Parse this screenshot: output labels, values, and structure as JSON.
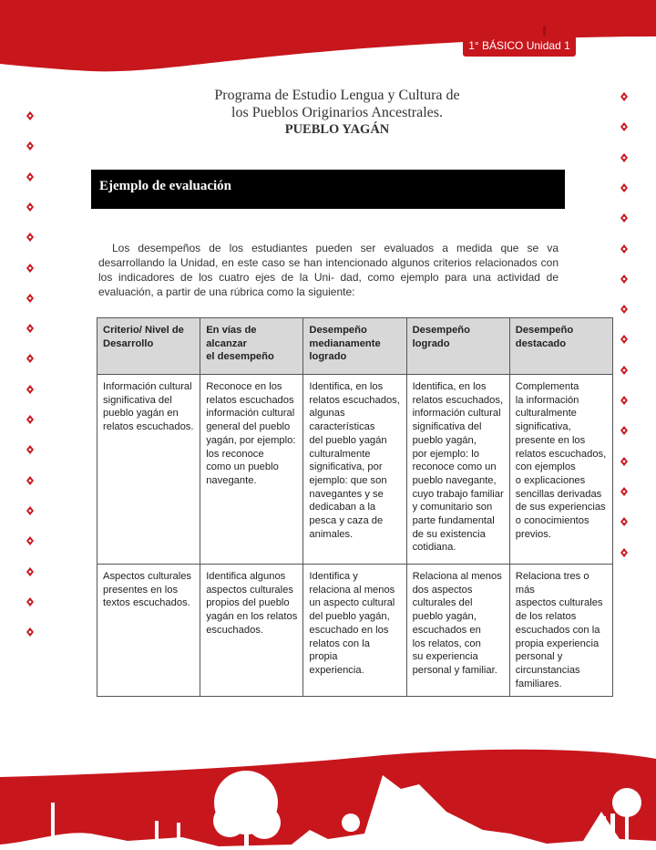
{
  "header": {
    "badge": "1° BÁSICO Unidad 1",
    "title_line1": "Programa de Estudio Lengua y Cultura de",
    "title_line2": "los Pueblos Originarios Ancestrales.",
    "title_line3": "PUEBLO YAGÁN"
  },
  "section": {
    "heading": "Ejemplo de evaluación"
  },
  "intro": "Los desempeños de los estudiantes pueden ser evaluados a medida que se va desarrollando la Unidad, en este caso se han intencionado algunos criterios relacionados con los indicadores de los cuatro ejes de la Uni- dad, como ejemplo para una actividad de evaluación, a partir de una rúbrica como la siguiente:",
  "table": {
    "headers": [
      "Criterio/ Nivel de\nDesarrollo",
      "En vías de alcanzar\nel desempeño",
      "Desempeño\nmedianamente\nlogrado",
      "Desempeño\nlogrado",
      "Desempeño\ndestacado"
    ],
    "rows": [
      [
        "Información cultural\nsignificativa del\npueblo yagán en\nrelatos escuchados.",
        "Reconoce en los\nrelatos escuchados\ninformación cultural\ngeneral del pueblo\nyagán, por ejemplo:\nlos reconoce\ncomo un pueblo\nnavegante.",
        "Identifica, en los\nrelatos escuchados,\nalgunas\ncaracterísticas\ndel pueblo yagán\nculturalmente\nsignificativa, por\nejemplo: que son\nnavegantes y se\ndedicaban a la\npesca y caza de\nanimales.",
        "Identifica, en los\nrelatos escuchados,\ninformación cultural\nsignificativa del\npueblo yagán,\npor ejemplo: lo\nreconoce como un\npueblo navegante,\ncuyo trabajo familiar\ny comunitario son\nparte fundamental\nde su existencia\ncotidiana.",
        "Complementa\nla información\nculturalmente\nsignificativa,\npresente en los\nrelatos escuchados,\ncon ejemplos\no explicaciones\nsencillas derivadas\nde sus experiencias\no conocimientos\nprevios."
      ],
      [
        "Aspectos culturales\npresentes en los\ntextos escuchados.",
        "Identifica algunos\naspectos culturales\npropios del pueblo\nyagán en los relatos\nescuchados.",
        "Identifica y\nrelaciona al menos\nun aspecto cultural\ndel pueblo yagán,\nescuchado en los\nrelatos con la propia\nexperiencia.",
        "Relaciona al menos\ndos aspectos\nculturales del\npueblo yagán,\nescuchados en\nlos relatos, con\nsu experiencia\npersonal y familiar.",
        "Relaciona tres o más\naspectos culturales\nde los relatos\nescuchados con la\npropia experiencia\npersonal y\ncircunstancias\nfamiliares."
      ]
    ]
  },
  "colors": {
    "brand_red": "#c8161d",
    "header_gray": "#d8d8d8"
  },
  "icons": {
    "decor": "diamond-ornament-icon",
    "footer": "landscape-silhouette"
  }
}
